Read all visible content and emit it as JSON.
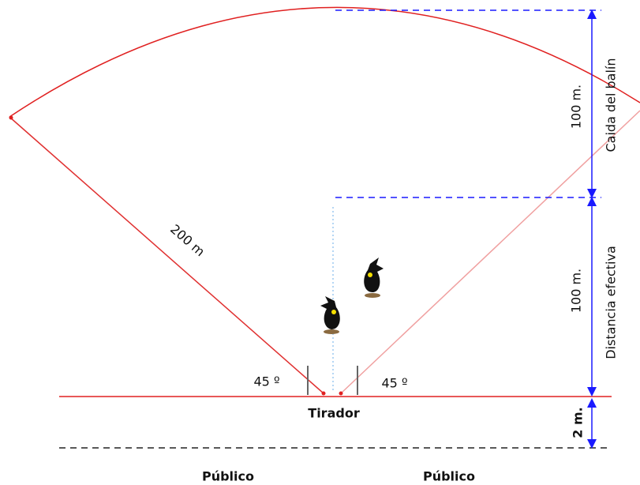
{
  "labels": {
    "distance": "200 m",
    "angle_left": "45 º",
    "angle_right": "45 º",
    "shooter": "Tirador",
    "fall_height": "100 m.",
    "effective_height": "100 m.",
    "safety_gap": "2 m.",
    "fall_label": "Caida del balín",
    "effective_label": "Distancia efectiva",
    "public_left": "Público",
    "public_right": "Público"
  }
}
